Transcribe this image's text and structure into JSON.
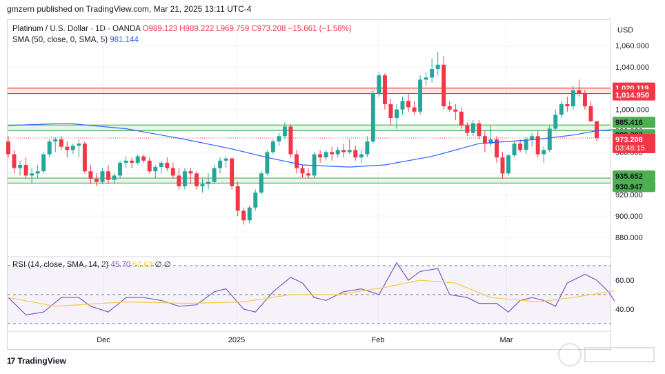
{
  "header": {
    "published": "gmzern published on TradingView.com, Mar 21, 2025 13:11 UTC-4"
  },
  "legend": {
    "title": "Platinum / U.S. Dollar · 1D · OANDA",
    "open": "O989.123",
    "high": "H989.222",
    "low": "L969.759",
    "close": "C973.208",
    "change": "−15.661 (−1.58%)",
    "sma_label": "SMA (50, close, 0, SMA, 5)",
    "sma_value": "981.144"
  },
  "rsi_legend": {
    "label": "RSI (14, close, SMA, 14, 2)",
    "rsi_value": "45.70",
    "rsi_sma_value": "52.63",
    "extra": "∅ ∅"
  },
  "axis": {
    "currency": "USD"
  },
  "footer": {
    "brand": "TradingView"
  },
  "colors": {
    "up": "#26a69a",
    "down": "#f23645",
    "sma": "#2962ff",
    "rsi": "#7e57c2",
    "rsi_sma": "#f7c948",
    "resistance": "#f23645",
    "support": "#4caf50"
  },
  "chart_data": [
    {
      "type": "candlestick",
      "y_range": [
        870,
        1070
      ],
      "y_ticks": [
        "1,060.000",
        "1,040.000",
        "1,020.000",
        "1,000.000",
        "980.000",
        "960.000",
        "940.000",
        "920.000",
        "900.000",
        "880.000"
      ],
      "x_labels": [
        "Dec",
        "2025",
        "Feb",
        "Mar"
      ],
      "candles": [
        {
          "o": 970,
          "h": 975,
          "l": 955,
          "c": 958
        },
        {
          "o": 958,
          "h": 962,
          "l": 940,
          "c": 945
        },
        {
          "o": 945,
          "h": 952,
          "l": 938,
          "c": 948
        },
        {
          "o": 948,
          "h": 955,
          "l": 935,
          "c": 938
        },
        {
          "o": 938,
          "h": 945,
          "l": 930,
          "c": 940
        },
        {
          "o": 940,
          "h": 948,
          "l": 935,
          "c": 942
        },
        {
          "o": 942,
          "h": 960,
          "l": 940,
          "c": 958
        },
        {
          "o": 958,
          "h": 972,
          "l": 955,
          "c": 970
        },
        {
          "o": 970,
          "h": 974,
          "l": 960,
          "c": 972
        },
        {
          "o": 972,
          "h": 975,
          "l": 962,
          "c": 965
        },
        {
          "o": 965,
          "h": 970,
          "l": 955,
          "c": 962
        },
        {
          "o": 962,
          "h": 968,
          "l": 958,
          "c": 966
        },
        {
          "o": 966,
          "h": 972,
          "l": 955,
          "c": 968
        },
        {
          "o": 968,
          "h": 970,
          "l": 940,
          "c": 942
        },
        {
          "o": 942,
          "h": 948,
          "l": 930,
          "c": 935
        },
        {
          "o": 935,
          "h": 940,
          "l": 928,
          "c": 932
        },
        {
          "o": 932,
          "h": 945,
          "l": 930,
          "c": 942
        },
        {
          "o": 942,
          "h": 948,
          "l": 930,
          "c": 934
        },
        {
          "o": 934,
          "h": 940,
          "l": 930,
          "c": 938
        },
        {
          "o": 938,
          "h": 952,
          "l": 935,
          "c": 950
        },
        {
          "o": 950,
          "h": 956,
          "l": 945,
          "c": 952
        },
        {
          "o": 952,
          "h": 955,
          "l": 945,
          "c": 950
        },
        {
          "o": 950,
          "h": 958,
          "l": 948,
          "c": 956
        },
        {
          "o": 956,
          "h": 958,
          "l": 950,
          "c": 952
        },
        {
          "o": 952,
          "h": 955,
          "l": 940,
          "c": 942
        },
        {
          "o": 942,
          "h": 948,
          "l": 935,
          "c": 946
        },
        {
          "o": 946,
          "h": 952,
          "l": 940,
          "c": 950
        },
        {
          "o": 950,
          "h": 955,
          "l": 942,
          "c": 945
        },
        {
          "o": 945,
          "h": 950,
          "l": 935,
          "c": 938
        },
        {
          "o": 938,
          "h": 945,
          "l": 925,
          "c": 928
        },
        {
          "o": 928,
          "h": 945,
          "l": 925,
          "c": 942
        },
        {
          "o": 942,
          "h": 945,
          "l": 930,
          "c": 940
        },
        {
          "o": 940,
          "h": 942,
          "l": 925,
          "c": 928
        },
        {
          "o": 928,
          "h": 935,
          "l": 922,
          "c": 930
        },
        {
          "o": 930,
          "h": 940,
          "l": 925,
          "c": 932
        },
        {
          "o": 932,
          "h": 948,
          "l": 930,
          "c": 945
        },
        {
          "o": 945,
          "h": 955,
          "l": 940,
          "c": 952
        },
        {
          "o": 952,
          "h": 956,
          "l": 945,
          "c": 954
        },
        {
          "o": 954,
          "h": 955,
          "l": 925,
          "c": 928
        },
        {
          "o": 928,
          "h": 932,
          "l": 900,
          "c": 905
        },
        {
          "o": 905,
          "h": 908,
          "l": 892,
          "c": 896
        },
        {
          "o": 896,
          "h": 910,
          "l": 893,
          "c": 908
        },
        {
          "o": 908,
          "h": 925,
          "l": 905,
          "c": 922
        },
        {
          "o": 922,
          "h": 942,
          "l": 920,
          "c": 940
        },
        {
          "o": 940,
          "h": 962,
          "l": 938,
          "c": 960
        },
        {
          "o": 960,
          "h": 972,
          "l": 958,
          "c": 970
        },
        {
          "o": 970,
          "h": 978,
          "l": 966,
          "c": 975
        },
        {
          "o": 975,
          "h": 988,
          "l": 972,
          "c": 984
        },
        {
          "o": 984,
          "h": 986,
          "l": 955,
          "c": 958
        },
        {
          "o": 958,
          "h": 962,
          "l": 940,
          "c": 945
        },
        {
          "o": 945,
          "h": 948,
          "l": 936,
          "c": 940
        },
        {
          "o": 940,
          "h": 945,
          "l": 935,
          "c": 938
        },
        {
          "o": 938,
          "h": 960,
          "l": 935,
          "c": 958
        },
        {
          "o": 958,
          "h": 962,
          "l": 950,
          "c": 955
        },
        {
          "o": 955,
          "h": 962,
          "l": 952,
          "c": 960
        },
        {
          "o": 960,
          "h": 965,
          "l": 952,
          "c": 958
        },
        {
          "o": 958,
          "h": 965,
          "l": 955,
          "c": 962
        },
        {
          "o": 962,
          "h": 968,
          "l": 955,
          "c": 960
        },
        {
          "o": 960,
          "h": 972,
          "l": 958,
          "c": 962
        },
        {
          "o": 962,
          "h": 966,
          "l": 952,
          "c": 955
        },
        {
          "o": 955,
          "h": 962,
          "l": 950,
          "c": 958
        },
        {
          "o": 958,
          "h": 975,
          "l": 955,
          "c": 970
        },
        {
          "o": 970,
          "h": 1018,
          "l": 968,
          "c": 1015
        },
        {
          "o": 1015,
          "h": 1035,
          "l": 1012,
          "c": 1032
        },
        {
          "o": 1032,
          "h": 1034,
          "l": 1000,
          "c": 1005
        },
        {
          "o": 1005,
          "h": 1010,
          "l": 985,
          "c": 992
        },
        {
          "o": 992,
          "h": 1005,
          "l": 982,
          "c": 1000
        },
        {
          "o": 1000,
          "h": 1012,
          "l": 995,
          "c": 1008
        },
        {
          "o": 1008,
          "h": 1015,
          "l": 998,
          "c": 1002
        },
        {
          "o": 1002,
          "h": 1008,
          "l": 995,
          "c": 998
        },
        {
          "o": 998,
          "h": 1032,
          "l": 995,
          "c": 1028
        },
        {
          "o": 1028,
          "h": 1035,
          "l": 1022,
          "c": 1030
        },
        {
          "o": 1030,
          "h": 1048,
          "l": 1025,
          "c": 1038
        },
        {
          "o": 1038,
          "h": 1054,
          "l": 1032,
          "c": 1042
        },
        {
          "o": 1042,
          "h": 1050,
          "l": 1000,
          "c": 1003
        },
        {
          "o": 1003,
          "h": 1008,
          "l": 998,
          "c": 1000
        },
        {
          "o": 1000,
          "h": 1005,
          "l": 990,
          "c": 998
        },
        {
          "o": 998,
          "h": 1002,
          "l": 982,
          "c": 985
        },
        {
          "o": 985,
          "h": 988,
          "l": 975,
          "c": 978
        },
        {
          "o": 978,
          "h": 990,
          "l": 975,
          "c": 987
        },
        {
          "o": 987,
          "h": 990,
          "l": 972,
          "c": 975
        },
        {
          "o": 975,
          "h": 980,
          "l": 960,
          "c": 968
        },
        {
          "o": 968,
          "h": 985,
          "l": 966,
          "c": 972
        },
        {
          "o": 972,
          "h": 975,
          "l": 950,
          "c": 955
        },
        {
          "o": 955,
          "h": 960,
          "l": 935,
          "c": 940
        },
        {
          "o": 940,
          "h": 958,
          "l": 938,
          "c": 957
        },
        {
          "o": 957,
          "h": 970,
          "l": 955,
          "c": 968
        },
        {
          "o": 968,
          "h": 972,
          "l": 960,
          "c": 962
        },
        {
          "o": 962,
          "h": 974,
          "l": 958,
          "c": 972
        },
        {
          "o": 972,
          "h": 978,
          "l": 965,
          "c": 975
        },
        {
          "o": 975,
          "h": 980,
          "l": 955,
          "c": 958
        },
        {
          "o": 958,
          "h": 965,
          "l": 950,
          "c": 962
        },
        {
          "o": 962,
          "h": 985,
          "l": 960,
          "c": 982
        },
        {
          "o": 982,
          "h": 1000,
          "l": 980,
          "c": 995
        },
        {
          "o": 995,
          "h": 1008,
          "l": 992,
          "c": 1005
        },
        {
          "o": 1005,
          "h": 1012,
          "l": 998,
          "c": 1003
        },
        {
          "o": 1003,
          "h": 1022,
          "l": 1000,
          "c": 1018
        },
        {
          "o": 1018,
          "h": 1028,
          "l": 1012,
          "c": 1015
        },
        {
          "o": 1015,
          "h": 1018,
          "l": 1000,
          "c": 1003
        },
        {
          "o": 1003,
          "h": 1008,
          "l": 988,
          "c": 989
        },
        {
          "o": 989,
          "h": 989.222,
          "l": 969.759,
          "c": 973.208
        }
      ],
      "sma": [
        {
          "i": 0,
          "v": 985
        },
        {
          "i": 10,
          "v": 987
        },
        {
          "i": 20,
          "v": 982
        },
        {
          "i": 30,
          "v": 972
        },
        {
          "i": 38,
          "v": 963
        },
        {
          "i": 44,
          "v": 955
        },
        {
          "i": 50,
          "v": 948
        },
        {
          "i": 58,
          "v": 946
        },
        {
          "i": 64,
          "v": 948
        },
        {
          "i": 72,
          "v": 956
        },
        {
          "i": 80,
          "v": 968
        },
        {
          "i": 90,
          "v": 972
        },
        {
          "i": 96,
          "v": 976
        },
        {
          "i": 100,
          "v": 980
        },
        {
          "i": 103,
          "v": 981.144
        }
      ],
      "levels": [
        {
          "label": "1,020.119",
          "value": 1020.119,
          "kind": "resistance"
        },
        {
          "label": "1,014.950",
          "value": 1014.95,
          "kind": "resistance"
        },
        {
          "label": "985.416",
          "value": 985.416,
          "kind": "support"
        },
        {
          "label": "980.203",
          "value": 980.203,
          "kind": "support"
        },
        {
          "label": "935.652",
          "value": 935.652,
          "kind": "support"
        },
        {
          "label": "930.947",
          "value": 930.947,
          "kind": "support"
        }
      ],
      "last_price": {
        "label": "973.208",
        "countdown": "03:48:15",
        "value": 973.208
      }
    },
    {
      "type": "line",
      "name": "RSI",
      "y_range": [
        25,
        75
      ],
      "y_ticks": [
        "60.00",
        "40.00"
      ],
      "bands": [
        70,
        50,
        30
      ],
      "rsi": [
        {
          "i": 0,
          "v": 48
        },
        {
          "i": 3,
          "v": 36
        },
        {
          "i": 6,
          "v": 38
        },
        {
          "i": 9,
          "v": 48
        },
        {
          "i": 12,
          "v": 48
        },
        {
          "i": 14,
          "v": 42
        },
        {
          "i": 17,
          "v": 38
        },
        {
          "i": 20,
          "v": 48
        },
        {
          "i": 23,
          "v": 48
        },
        {
          "i": 26,
          "v": 46
        },
        {
          "i": 29,
          "v": 42
        },
        {
          "i": 32,
          "v": 43
        },
        {
          "i": 35,
          "v": 52
        },
        {
          "i": 37,
          "v": 54
        },
        {
          "i": 40,
          "v": 40
        },
        {
          "i": 42,
          "v": 38
        },
        {
          "i": 45,
          "v": 52
        },
        {
          "i": 48,
          "v": 62
        },
        {
          "i": 50,
          "v": 58
        },
        {
          "i": 52,
          "v": 48
        },
        {
          "i": 54,
          "v": 46
        },
        {
          "i": 57,
          "v": 52
        },
        {
          "i": 60,
          "v": 54
        },
        {
          "i": 63,
          "v": 50
        },
        {
          "i": 66,
          "v": 72
        },
        {
          "i": 68,
          "v": 60
        },
        {
          "i": 70,
          "v": 66
        },
        {
          "i": 73,
          "v": 68
        },
        {
          "i": 75,
          "v": 50
        },
        {
          "i": 78,
          "v": 48
        },
        {
          "i": 80,
          "v": 44
        },
        {
          "i": 83,
          "v": 44
        },
        {
          "i": 85,
          "v": 38
        },
        {
          "i": 87,
          "v": 46
        },
        {
          "i": 89,
          "v": 48
        },
        {
          "i": 91,
          "v": 46
        },
        {
          "i": 93,
          "v": 42
        },
        {
          "i": 95,
          "v": 58
        },
        {
          "i": 98,
          "v": 64
        },
        {
          "i": 100,
          "v": 60
        },
        {
          "i": 102,
          "v": 52
        },
        {
          "i": 103,
          "v": 45.7
        }
      ],
      "rsi_sma": [
        {
          "i": 0,
          "v": 48
        },
        {
          "i": 8,
          "v": 42
        },
        {
          "i": 20,
          "v": 45
        },
        {
          "i": 30,
          "v": 44
        },
        {
          "i": 40,
          "v": 45
        },
        {
          "i": 48,
          "v": 50
        },
        {
          "i": 56,
          "v": 50
        },
        {
          "i": 64,
          "v": 55
        },
        {
          "i": 70,
          "v": 60
        },
        {
          "i": 76,
          "v": 58
        },
        {
          "i": 82,
          "v": 48
        },
        {
          "i": 90,
          "v": 45
        },
        {
          "i": 96,
          "v": 48
        },
        {
          "i": 103,
          "v": 52.63
        }
      ]
    }
  ]
}
